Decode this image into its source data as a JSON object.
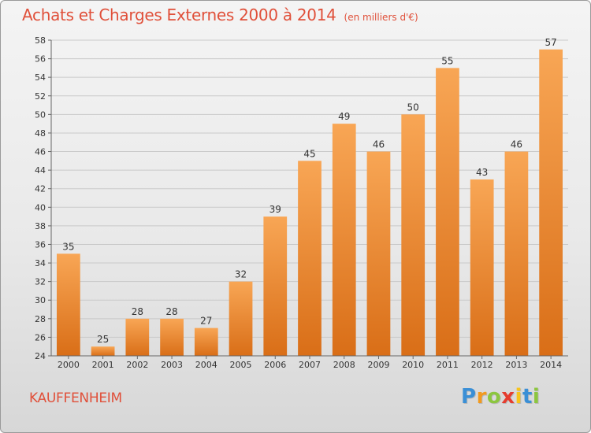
{
  "chart_data": {
    "type": "bar",
    "title": "Achats et Charges Externes 2000 à 2014",
    "subtitle": "(en milliers d'€)",
    "categories": [
      "2000",
      "2001",
      "2002",
      "2003",
      "2004",
      "2005",
      "2006",
      "2007",
      "2008",
      "2009",
      "2010",
      "2011",
      "2012",
      "2013",
      "2014"
    ],
    "values": [
      35,
      25,
      28,
      28,
      27,
      32,
      39,
      45,
      49,
      46,
      50,
      55,
      43,
      46,
      57
    ],
    "xlabel": "",
    "ylabel": "",
    "ylim": [
      24,
      58
    ],
    "yticks": [
      24,
      26,
      28,
      30,
      32,
      34,
      36,
      38,
      40,
      42,
      44,
      46,
      48,
      50,
      52,
      54,
      56,
      58
    ],
    "grid": true,
    "bar_color_top": "#f8a655",
    "bar_color_bottom": "#d96e17"
  },
  "footer": {
    "commune": "KAUFFENHEIM",
    "logo_letters": [
      "P",
      "r",
      "o",
      "x",
      "i",
      "t",
      "i"
    ],
    "logo_colors": [
      "#3a8fd6",
      "#f29a1f",
      "#8cc63f",
      "#e53d2f",
      "#f7c41b",
      "#3a8fd6",
      "#8cc63f"
    ]
  }
}
